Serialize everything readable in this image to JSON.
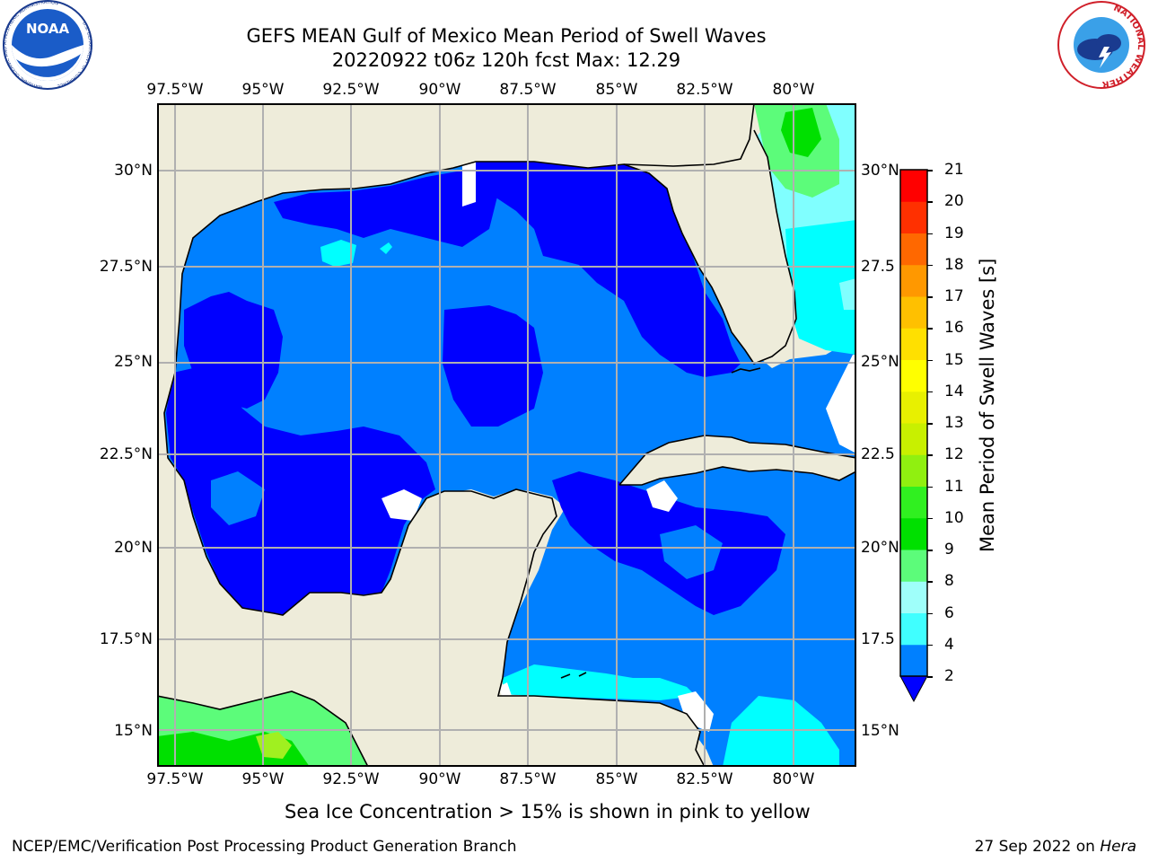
{
  "title": {
    "line1": "GEFS MEAN Gulf of Mexico Mean Period of Swell Waves",
    "line2": "20220922 t06z 120h fcst   Max: 12.29"
  },
  "map": {
    "region": "Gulf of Mexico",
    "lon_range": [
      -98.0,
      -78.2
    ],
    "lat_range": [
      14.0,
      31.7
    ],
    "gridlines": true,
    "lon_ticks": [
      "97.5°W",
      "95°W",
      "92.5°W",
      "90°W",
      "87.5°W",
      "85°W",
      "82.5°W",
      "80°W"
    ],
    "lat_ticks_left": [
      "30°N",
      "27.5°N",
      "25°N",
      "22.5°N",
      "20°N",
      "17.5°N",
      "15°N"
    ],
    "lat_ticks_right": [
      "30°N",
      "27.5",
      "25°N",
      "22.5",
      "20°N",
      "17.5",
      "15°N"
    ],
    "colors": {
      "land": "#eeecda",
      "missing": "#ffffff",
      "period_2_4": "#0000ff",
      "period_4_6": "#0080ff",
      "period_6_8": "#00ffff",
      "period_8_9": "#80ffff",
      "period_9_10": "#5cfc7a",
      "period_10_11": "#00e000",
      "period_12_13": "#a0f020"
    }
  },
  "colorbar": {
    "label": "Mean Period of Swell Waves [s]",
    "ticks": [
      "2",
      "4",
      "6",
      "8",
      "9",
      "10",
      "11",
      "12",
      "13",
      "14",
      "15",
      "16",
      "17",
      "18",
      "19",
      "20",
      "21"
    ],
    "colors": [
      "#0080ff",
      "#00e6ff",
      "#40ffff",
      "#9ffffa",
      "#5cfc7a",
      "#00e000",
      "#30f020",
      "#90f010",
      "#c8f000",
      "#e8f000",
      "#ffff00",
      "#ffe000",
      "#ffc000",
      "#ff9800",
      "#ff6800",
      "#ff3000",
      "#ff0000"
    ],
    "extend_color": "#0000ff"
  },
  "caption": "Sea Ice Concentration > 15% is shown in pink to yellow",
  "footer": {
    "left": "NCEP/EMC/Verification Post Processing Product Generation Branch",
    "right_date": "27 Sep 2022 on ",
    "right_machine": "Hera"
  },
  "logos": {
    "noaa_text": "NOAA",
    "noaa_ring_top": "NATIONAL OCEANIC AND ATMOSPHERIC ADMINISTRATION",
    "noaa_ring_bottom": "U.S. DEPARTMENT OF COMMERCE",
    "nws_ring": "NATIONAL WEATHER SERVICE"
  }
}
